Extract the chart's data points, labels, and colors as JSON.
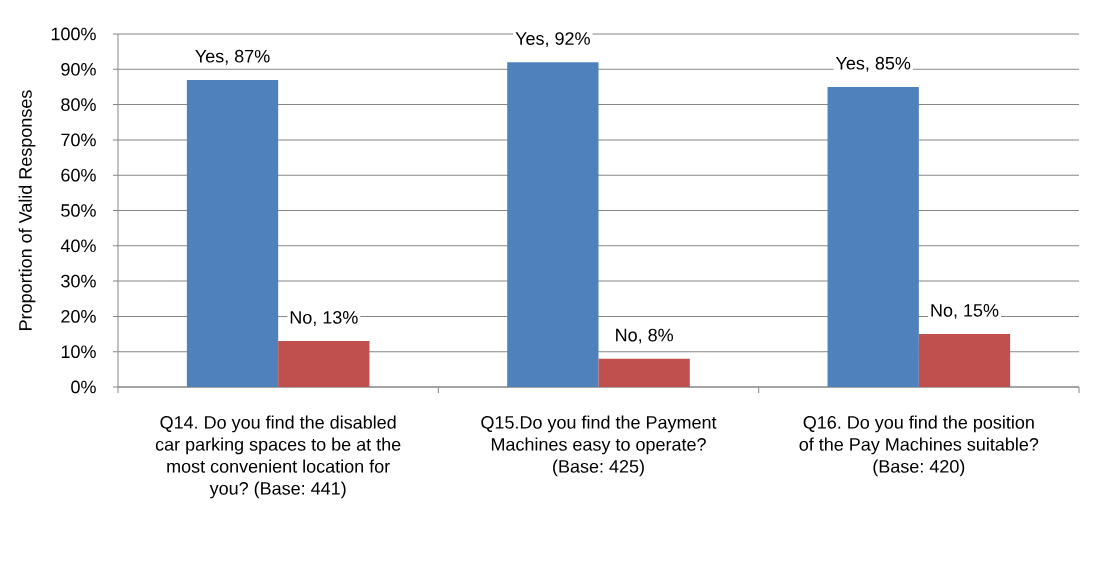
{
  "chart_data": {
    "type": "bar",
    "ylabel": "Proportion of Valid Responses",
    "categories": [
      "Q14. Do you find the disabled car parking spaces to be at the most convenient location for you? (Base: 441)",
      "Q15.Do you find the Payment Machines easy to operate? (Base: 425)",
      "Q16. Do you find the position of the Pay Machines suitable? (Base: 420)"
    ],
    "series": [
      {
        "color": "#4f81bd",
        "values": [
          87,
          92,
          85
        ],
        "value_labels": [
          "Yes, 87%",
          "Yes, 92%",
          "Yes, 85%"
        ]
      },
      {
        "color": "#c0504d",
        "values": [
          13,
          8,
          15
        ],
        "value_labels": [
          "No, 13%",
          "No, 8%",
          "No, 15%"
        ]
      }
    ],
    "ylim": [
      0,
      100
    ],
    "yticks": [
      {
        "value": 0,
        "label": "0%"
      },
      {
        "value": 10,
        "label": "10%"
      },
      {
        "value": 20,
        "label": "20%"
      },
      {
        "value": 30,
        "label": "30%"
      },
      {
        "value": 40,
        "label": "40%"
      },
      {
        "value": 50,
        "label": "50%"
      },
      {
        "value": 60,
        "label": "60%"
      },
      {
        "value": 70,
        "label": "70%"
      },
      {
        "value": 80,
        "label": "80%"
      },
      {
        "value": 90,
        "label": "90%"
      },
      {
        "value": 100,
        "label": "100%"
      }
    ],
    "grid": "y"
  }
}
